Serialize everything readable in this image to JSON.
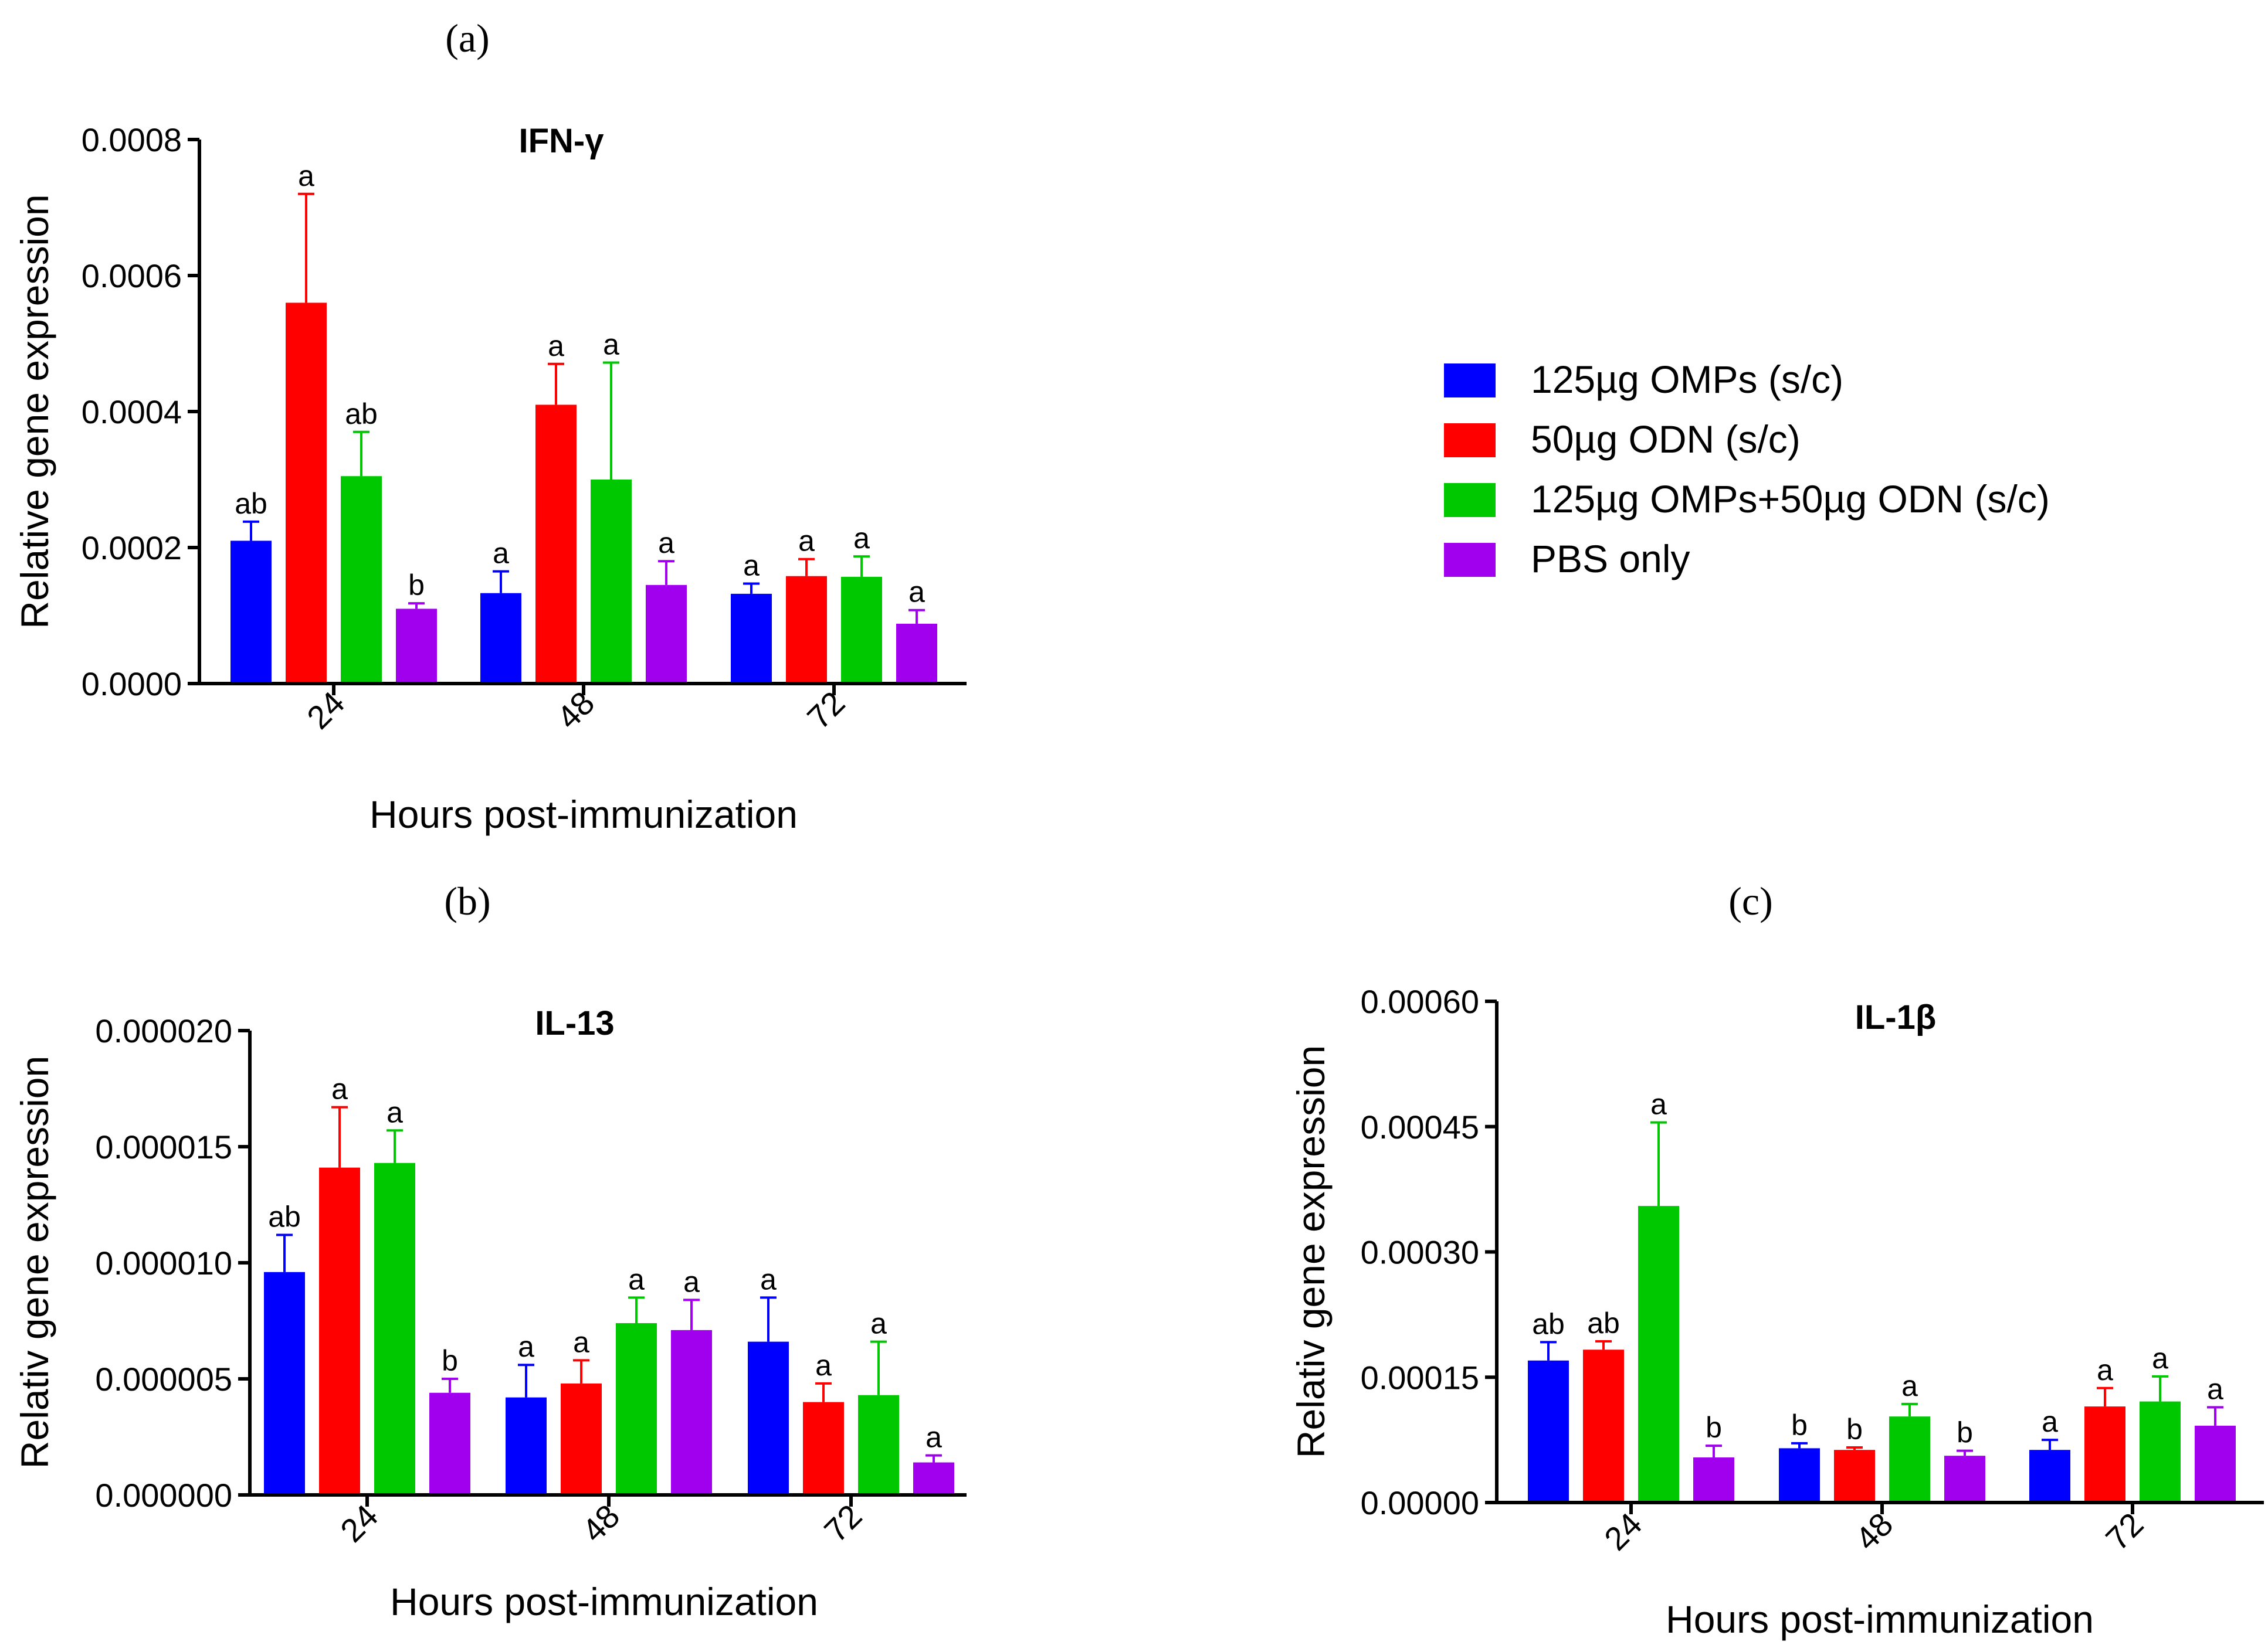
{
  "legend": [
    {
      "name": "125µg OMPs (s/c)",
      "color": "#0000ff"
    },
    {
      "name": "50µg ODN (s/c)",
      "color": "#ff0000"
    },
    {
      "name": "125µg OMPs+50µg ODN (s/c)",
      "color": "#00c800"
    },
    {
      "name": "PBS only",
      "color": "#a000ee"
    }
  ],
  "chart_data": [
    {
      "panel": "(a)",
      "type": "bar",
      "title": "IFN-γ",
      "xlabel": "Hours post-immunization",
      "ylabel": "Relative gene expression",
      "categories": [
        "24",
        "48",
        "72"
      ],
      "ylim": [
        0,
        0.0008
      ],
      "yticks": [
        0,
        0.0002,
        0.0004,
        0.0006,
        0.0008
      ],
      "yticklabels": [
        "0.0000",
        "0.0002",
        "0.0004",
        "0.0006",
        "0.0008"
      ],
      "series": [
        {
          "name": "125µg OMPs (s/c)",
          "values": [
            0.00021,
            0.000133,
            0.000132
          ],
          "errors": [
            2.8e-05,
            3.2e-05,
            1.5e-05
          ],
          "letters": [
            "ab",
            "a",
            "a"
          ]
        },
        {
          "name": "50µg ODN (s/c)",
          "values": [
            0.00056,
            0.00041,
            0.000158
          ],
          "errors": [
            0.00016,
            6e-05,
            2.5e-05
          ],
          "letters": [
            "a",
            "a",
            "a"
          ]
        },
        {
          "name": "125µg OMPs+50µg ODN (s/c)",
          "values": [
            0.000305,
            0.0003,
            0.000157
          ],
          "errors": [
            6.5e-05,
            0.000172,
            3e-05
          ],
          "letters": [
            "ab",
            "a",
            "a"
          ]
        },
        {
          "name": "PBS only",
          "values": [
            0.00011,
            0.000145,
            8.8e-05
          ],
          "errors": [
            8e-06,
            3.5e-05,
            2e-05
          ],
          "letters": [
            "b",
            "a",
            "a"
          ]
        }
      ]
    },
    {
      "panel": "(b)",
      "type": "bar",
      "title": "IL-13",
      "xlabel": "Hours post-immunization",
      "ylabel": "Relativ gene expression",
      "categories": [
        "24",
        "48",
        "72"
      ],
      "ylim": [
        0,
        2e-05
      ],
      "yticks": [
        0,
        5e-06,
        1e-05,
        1.5e-05,
        2e-05
      ],
      "yticklabels": [
        "0.000000",
        "0.000005",
        "0.000010",
        "0.000015",
        "0.000020"
      ],
      "series": [
        {
          "name": "125µg OMPs (s/c)",
          "values": [
            9.6e-06,
            4.2e-06,
            6.6e-06
          ],
          "errors": [
            1.6e-06,
            1.4e-06,
            1.9e-06
          ],
          "letters": [
            "ab",
            "a",
            "a"
          ]
        },
        {
          "name": "50µg ODN (s/c)",
          "values": [
            1.41e-05,
            4.8e-06,
            4e-06
          ],
          "errors": [
            2.6e-06,
            1e-06,
            8e-07
          ],
          "letters": [
            "a",
            "a",
            "a"
          ]
        },
        {
          "name": "125µg OMPs+50µg ODN (s/c)",
          "values": [
            1.43e-05,
            7.4e-06,
            4.3e-06
          ],
          "errors": [
            1.4e-06,
            1.1e-06,
            2.3e-06
          ],
          "letters": [
            "a",
            "a",
            "a"
          ]
        },
        {
          "name": "PBS only",
          "values": [
            4.4e-06,
            7.1e-06,
            1.4e-06
          ],
          "errors": [
            6e-07,
            1.3e-06,
            3e-07
          ],
          "letters": [
            "b",
            "a",
            "a"
          ]
        }
      ]
    },
    {
      "panel": "(c)",
      "type": "bar",
      "title": "IL-1β",
      "xlabel": "Hours post-immunization",
      "ylabel": "Relativ gene expression",
      "categories": [
        "24",
        "48",
        "72"
      ],
      "ylim": [
        0,
        0.0006
      ],
      "yticks": [
        0,
        0.00015,
        0.0003,
        0.00045,
        0.0006
      ],
      "yticklabels": [
        "0.00000",
        "0.00015",
        "0.00030",
        "0.00045",
        "0.00060"
      ],
      "series": [
        {
          "name": "125µg OMPs (s/c)",
          "values": [
            0.00017,
            6.5e-05,
            6.3e-05
          ],
          "errors": [
            2.2e-05,
            6e-06,
            1.2e-05
          ],
          "letters": [
            "ab",
            "b",
            "a"
          ]
        },
        {
          "name": "50µg ODN (s/c)",
          "values": [
            0.000183,
            6.3e-05,
            0.000115
          ],
          "errors": [
            1e-05,
            3e-06,
            2.2e-05
          ],
          "letters": [
            "ab",
            "b",
            "a"
          ]
        },
        {
          "name": "125µg OMPs+50µg ODN (s/c)",
          "values": [
            0.000355,
            0.000103,
            0.000121
          ],
          "errors": [
            0.0001,
            1.5e-05,
            3e-05
          ],
          "letters": [
            "a",
            "a",
            "a"
          ]
        },
        {
          "name": "PBS only",
          "values": [
            5.4e-05,
            5.6e-05,
            9.2e-05
          ],
          "errors": [
            1.4e-05,
            6e-06,
            2.2e-05
          ],
          "letters": [
            "b",
            "b",
            "a"
          ]
        }
      ]
    }
  ]
}
